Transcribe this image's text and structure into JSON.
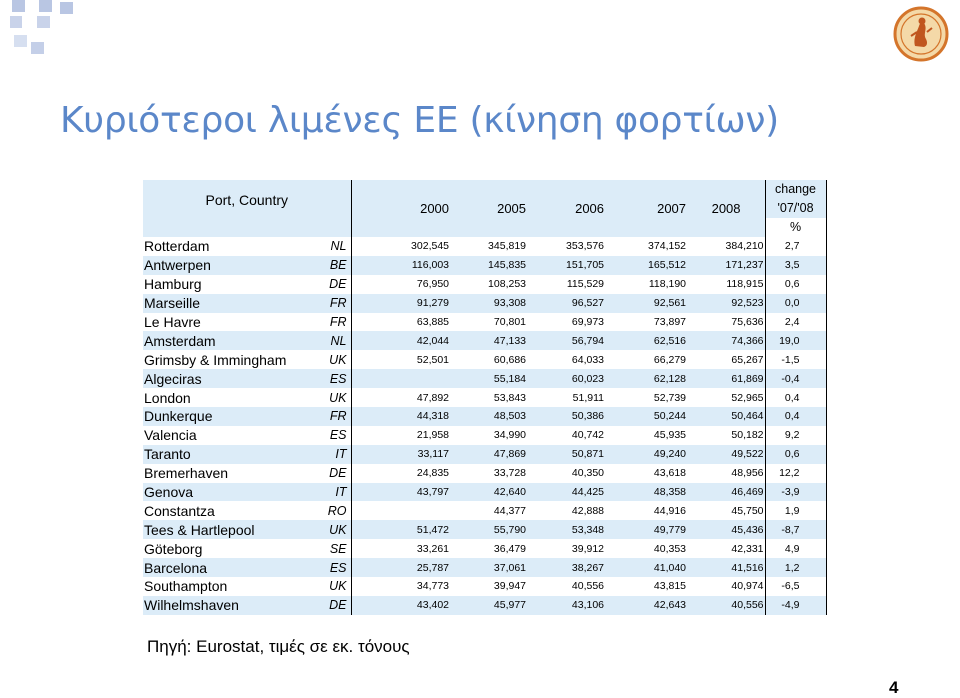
{
  "slide": {
    "title": "Κυριότεροι λιμένες ΕΕ (κίνηση φορτίων)",
    "source": "Πηγή: Eurostat, τιμές σε εκ. τόνους",
    "page_number": "4"
  },
  "table": {
    "port_header": "Port, Country",
    "years": [
      "2000",
      "2005",
      "2006",
      "2007",
      "2008"
    ],
    "change_header_1": "change",
    "change_header_2": "'07/'08",
    "change_header_3": "%",
    "rows": [
      {
        "port": "Rotterdam",
        "country": "NL",
        "y2000": "302,545",
        "y2005": "345,819",
        "y2006": "353,576",
        "y2007": "374,152",
        "y2008": "384,210",
        "change": "2,7"
      },
      {
        "port": "Antwerpen",
        "country": "BE",
        "y2000": "116,003",
        "y2005": "145,835",
        "y2006": "151,705",
        "y2007": "165,512",
        "y2008": "171,237",
        "change": "3,5"
      },
      {
        "port": "Hamburg",
        "country": "DE",
        "y2000": "76,950",
        "y2005": "108,253",
        "y2006": "115,529",
        "y2007": "118,190",
        "y2008": "118,915",
        "change": "0,6"
      },
      {
        "port": "Marseille",
        "country": "FR",
        "y2000": "91,279",
        "y2005": "93,308",
        "y2006": "96,527",
        "y2007": "92,561",
        "y2008": "92,523",
        "change": "0,0"
      },
      {
        "port": "Le Havre",
        "country": "FR",
        "y2000": "63,885",
        "y2005": "70,801",
        "y2006": "69,973",
        "y2007": "73,897",
        "y2008": "75,636",
        "change": "2,4"
      },
      {
        "port": "Amsterdam",
        "country": "NL",
        "y2000": "42,044",
        "y2005": "47,133",
        "y2006": "56,794",
        "y2007": "62,516",
        "y2008": "74,366",
        "change": "19,0"
      },
      {
        "port": "Grimsby & Immingham",
        "country": "UK",
        "y2000": "52,501",
        "y2005": "60,686",
        "y2006": "64,033",
        "y2007": "66,279",
        "y2008": "65,267",
        "change": "-1,5"
      },
      {
        "port": "Algeciras",
        "country": "ES",
        "y2000": "",
        "y2005": "55,184",
        "y2006": "60,023",
        "y2007": "62,128",
        "y2008": "61,869",
        "change": "-0,4"
      },
      {
        "port": "London",
        "country": "UK",
        "y2000": "47,892",
        "y2005": "53,843",
        "y2006": "51,911",
        "y2007": "52,739",
        "y2008": "52,965",
        "change": "0,4"
      },
      {
        "port": "Dunkerque",
        "country": "FR",
        "y2000": "44,318",
        "y2005": "48,503",
        "y2006": "50,386",
        "y2007": "50,244",
        "y2008": "50,464",
        "change": "0,4"
      },
      {
        "port": "Valencia",
        "country": "ES",
        "y2000": "21,958",
        "y2005": "34,990",
        "y2006": "40,742",
        "y2007": "45,935",
        "y2008": "50,182",
        "change": "9,2"
      },
      {
        "port": "Taranto",
        "country": "IT",
        "y2000": "33,117",
        "y2005": "47,869",
        "y2006": "50,871",
        "y2007": "49,240",
        "y2008": "49,522",
        "change": "0,6"
      },
      {
        "port": "Bremerhaven",
        "country": "DE",
        "y2000": "24,835",
        "y2005": "33,728",
        "y2006": "40,350",
        "y2007": "43,618",
        "y2008": "48,956",
        "change": "12,2"
      },
      {
        "port": "Genova",
        "country": "IT",
        "y2000": "43,797",
        "y2005": "42,640",
        "y2006": "44,425",
        "y2007": "48,358",
        "y2008": "46,469",
        "change": "-3,9"
      },
      {
        "port": "Constantza",
        "country": "RO",
        "y2000": "",
        "y2005": "44,377",
        "y2006": "42,888",
        "y2007": "44,916",
        "y2008": "45,750",
        "change": "1,9"
      },
      {
        "port": "Tees & Hartlepool",
        "country": "UK",
        "y2000": "51,472",
        "y2005": "55,790",
        "y2006": "53,348",
        "y2007": "49,779",
        "y2008": "45,436",
        "change": "-8,7"
      },
      {
        "port": "Göteborg",
        "country": "SE",
        "y2000": "33,261",
        "y2005": "36,479",
        "y2006": "39,912",
        "y2007": "40,353",
        "y2008": "42,331",
        "change": "4,9"
      },
      {
        "port": "Barcelona",
        "country": "ES",
        "y2000": "25,787",
        "y2005": "37,061",
        "y2006": "38,267",
        "y2007": "41,040",
        "y2008": "41,516",
        "change": "1,2"
      },
      {
        "port": "Southampton",
        "country": "UK",
        "y2000": "34,773",
        "y2005": "39,947",
        "y2006": "40,556",
        "y2007": "43,815",
        "y2008": "40,974",
        "change": "-6,5"
      },
      {
        "port": "Wilhelmshaven",
        "country": "DE",
        "y2000": "43,402",
        "y2005": "45,977",
        "y2006": "43,106",
        "y2007": "42,643",
        "y2008": "40,556",
        "change": "-4,9"
      }
    ]
  }
}
